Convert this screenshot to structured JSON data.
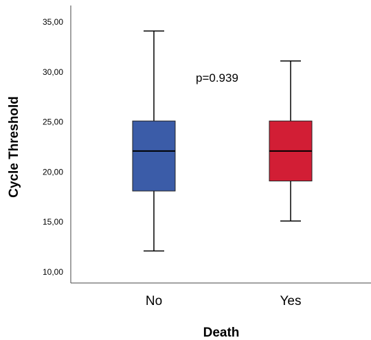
{
  "chart_data": {
    "type": "boxplot",
    "xlabel": "Death",
    "ylabel": "Cycle Threshold",
    "ylim": [
      10,
      35
    ],
    "yticks": [
      "10,00",
      "15,00",
      "20,00",
      "25,00",
      "30,00",
      "35,00"
    ],
    "ytick_values": [
      10,
      15,
      20,
      25,
      30,
      35
    ],
    "grid": false,
    "categories": [
      "No",
      "Yes"
    ],
    "boxes": [
      {
        "category": "No",
        "min": 12.1,
        "q1": 18.1,
        "median": 22.1,
        "q3": 25.1,
        "max": 34.1,
        "color": "#3b5ca8"
      },
      {
        "category": "Yes",
        "min": 15.1,
        "q1": 19.1,
        "median": 22.1,
        "q3": 25.1,
        "max": 31.1,
        "color": "#d21e35"
      }
    ],
    "annotation": "p=0.939"
  }
}
